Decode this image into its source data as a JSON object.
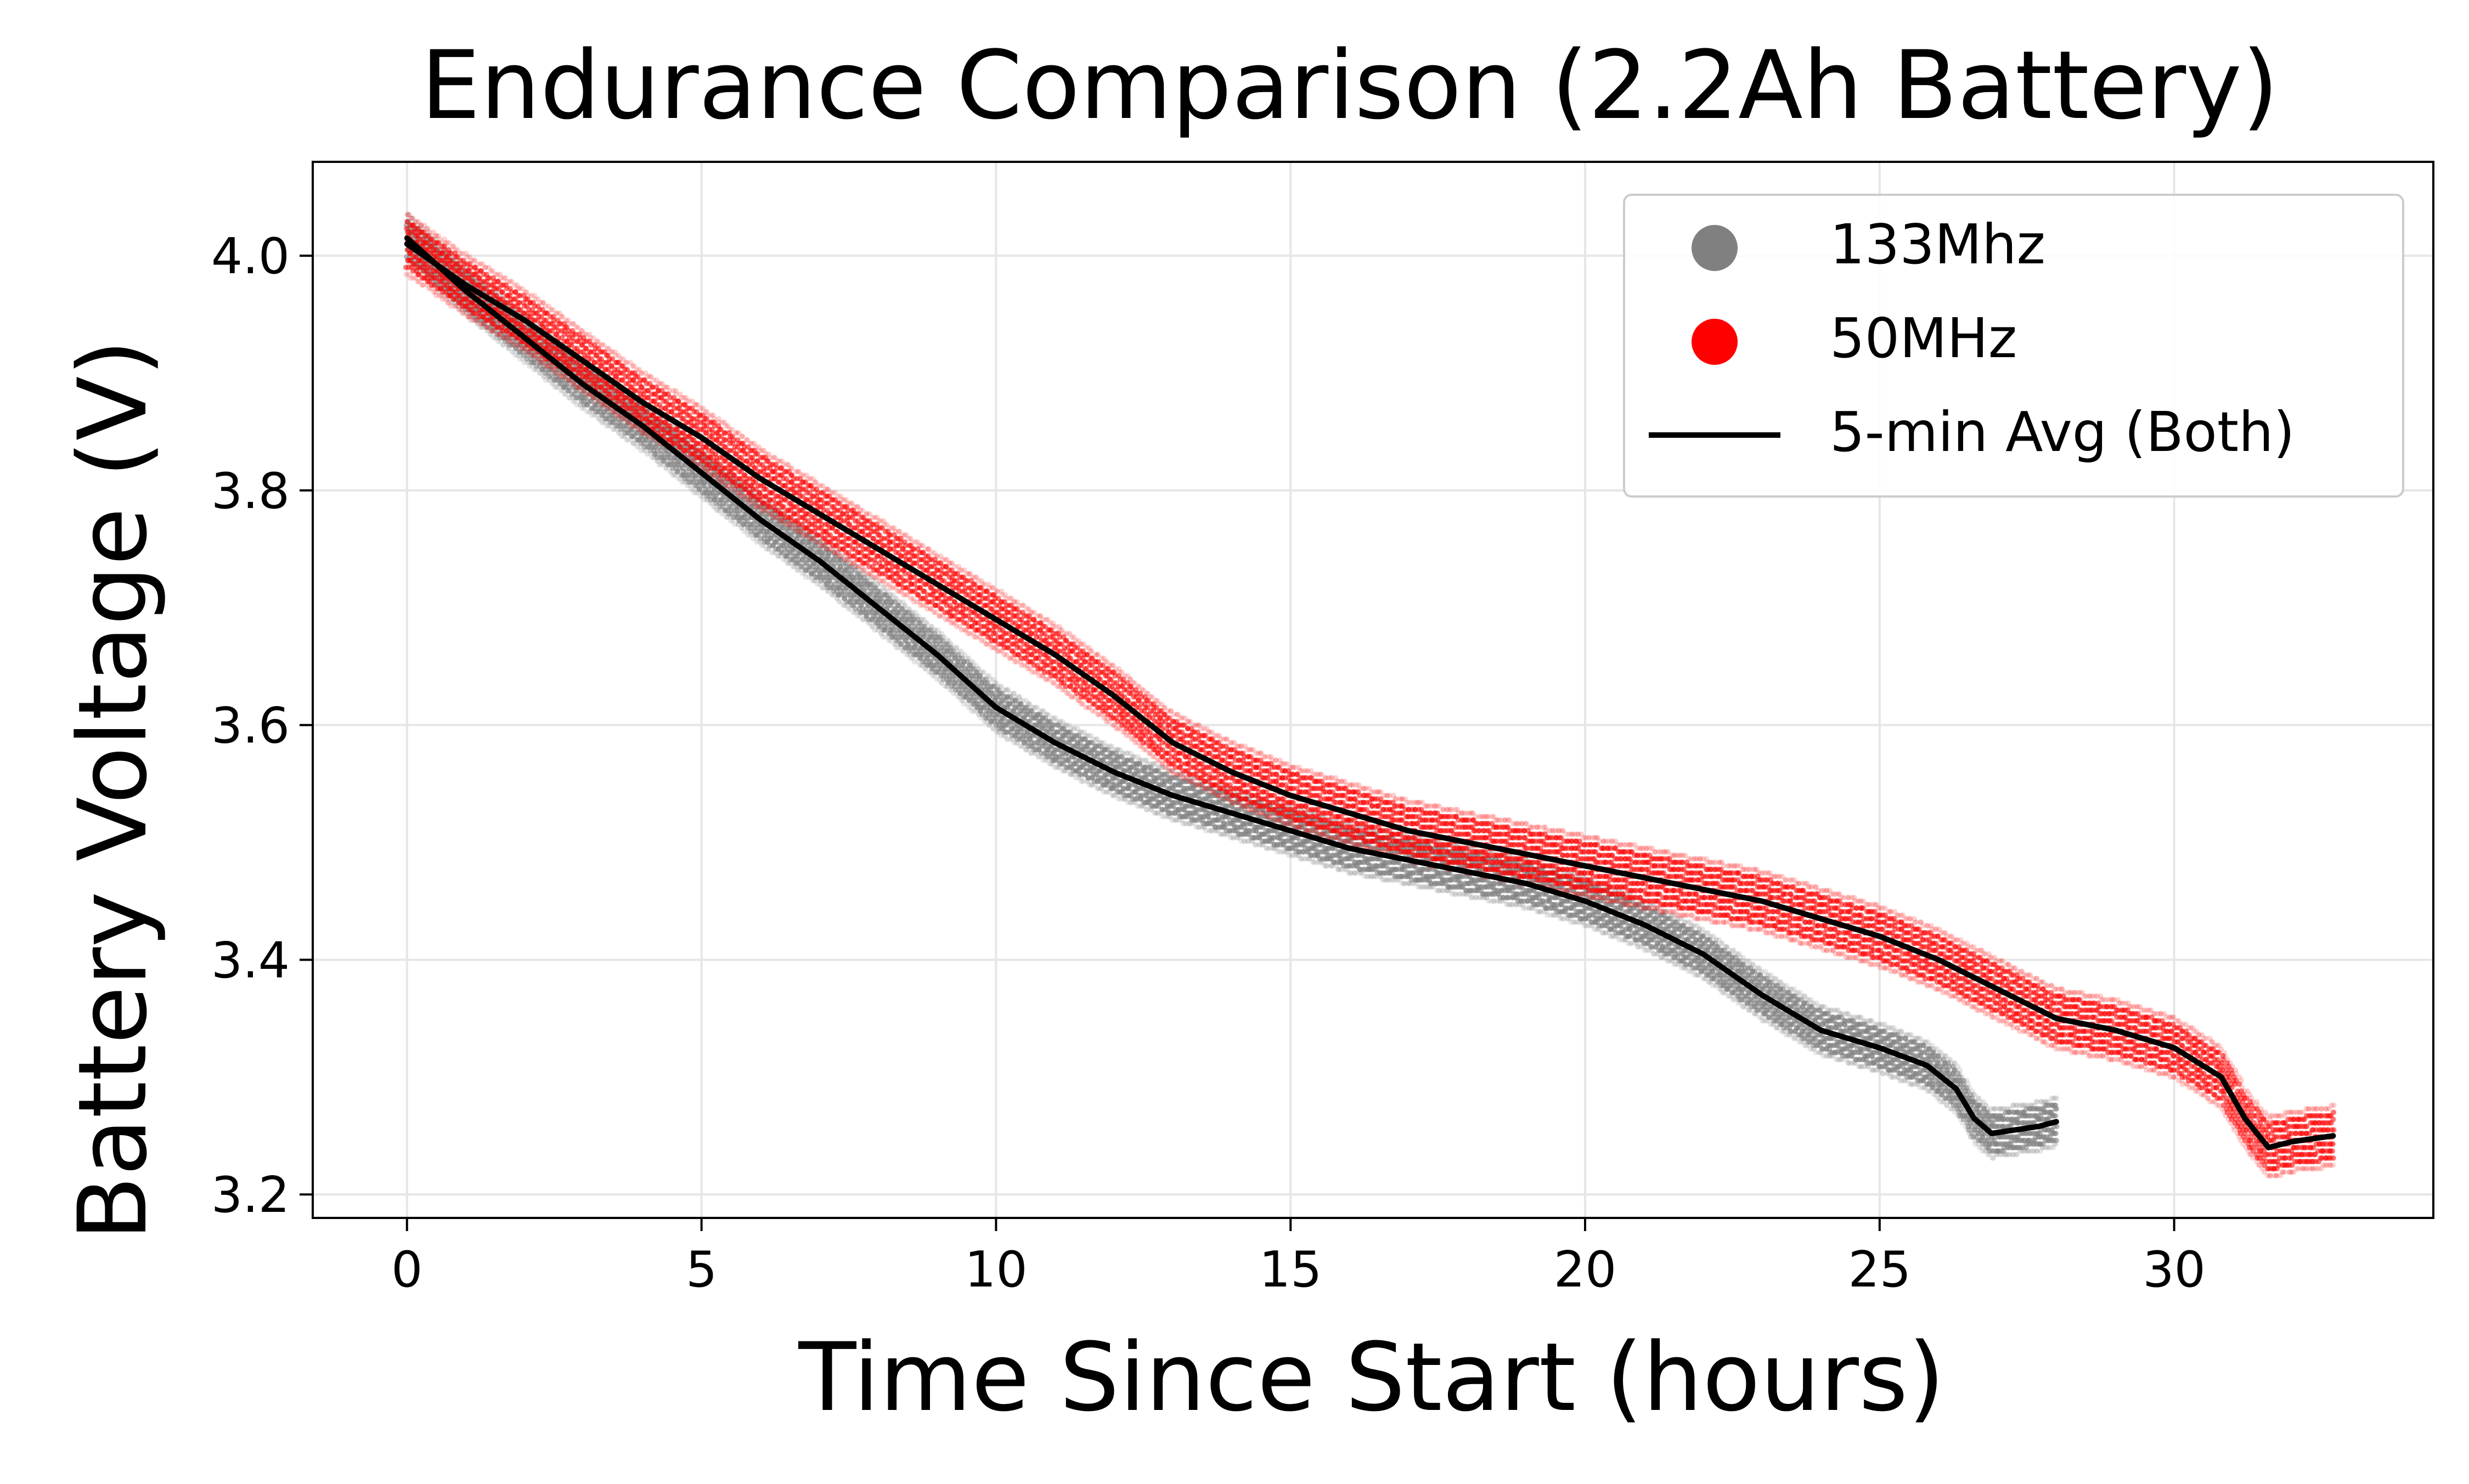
{
  "chart_data": {
    "type": "scatter",
    "title": "Endurance Comparison (2.2Ah Battery)",
    "xlabel": "Time Since Start (hours)",
    "ylabel": "Battery Voltage (V)",
    "xlim": [
      -1.6,
      34.4
    ],
    "ylim": [
      3.18,
      4.08
    ],
    "x_ticks": [
      0,
      5,
      10,
      15,
      20,
      25,
      30
    ],
    "y_ticks": [
      3.2,
      3.4,
      3.6,
      3.8,
      4.0
    ],
    "grid": true,
    "legend_position": "top-right",
    "legend": [
      {
        "label": "133Mhz",
        "marker": "circle",
        "color": "#808080"
      },
      {
        "label": "50MHz",
        "marker": "circle",
        "color": "#ff0000"
      },
      {
        "label": "5-min Avg (Both)",
        "marker": "line",
        "color": "#000000"
      }
    ],
    "series": [
      {
        "name": "133Mhz",
        "kind": "scatter",
        "color": "#808080",
        "x_end": 28.0,
        "spread": 0.02,
        "avg_line": {
          "x": [
            0,
            1,
            2,
            3,
            4,
            5,
            6,
            7,
            8,
            9,
            10,
            11,
            12,
            13,
            14,
            15,
            16,
            17,
            18,
            19,
            20,
            21,
            22,
            23,
            24,
            25,
            25.8,
            26.3,
            26.6,
            26.9,
            27.3,
            27.7,
            28.0
          ],
          "y": [
            4.015,
            3.97,
            3.93,
            3.89,
            3.855,
            3.815,
            3.775,
            3.74,
            3.7,
            3.66,
            3.615,
            3.585,
            3.56,
            3.54,
            3.525,
            3.51,
            3.495,
            3.485,
            3.475,
            3.465,
            3.45,
            3.43,
            3.405,
            3.37,
            3.34,
            3.325,
            3.31,
            3.29,
            3.265,
            3.252,
            3.255,
            3.258,
            3.262
          ]
        }
      },
      {
        "name": "50MHz",
        "kind": "scatter",
        "color": "#ff0000",
        "x_end": 32.7,
        "spread": 0.025,
        "avg_line": {
          "x": [
            0,
            1,
            2,
            3,
            4,
            5,
            6,
            7,
            8,
            9,
            10,
            11,
            12,
            13,
            14,
            15,
            16,
            17,
            18,
            19,
            20,
            21,
            22,
            23,
            24,
            25,
            26,
            27,
            28,
            29,
            30,
            30.8,
            31.2,
            31.6,
            32.0,
            32.7
          ],
          "y": [
            4.01,
            3.975,
            3.945,
            3.91,
            3.875,
            3.845,
            3.81,
            3.78,
            3.75,
            3.72,
            3.69,
            3.66,
            3.625,
            3.585,
            3.56,
            3.54,
            3.525,
            3.51,
            3.5,
            3.49,
            3.48,
            3.47,
            3.46,
            3.45,
            3.435,
            3.42,
            3.4,
            3.375,
            3.35,
            3.34,
            3.325,
            3.3,
            3.265,
            3.24,
            3.245,
            3.25
          ]
        }
      }
    ]
  }
}
